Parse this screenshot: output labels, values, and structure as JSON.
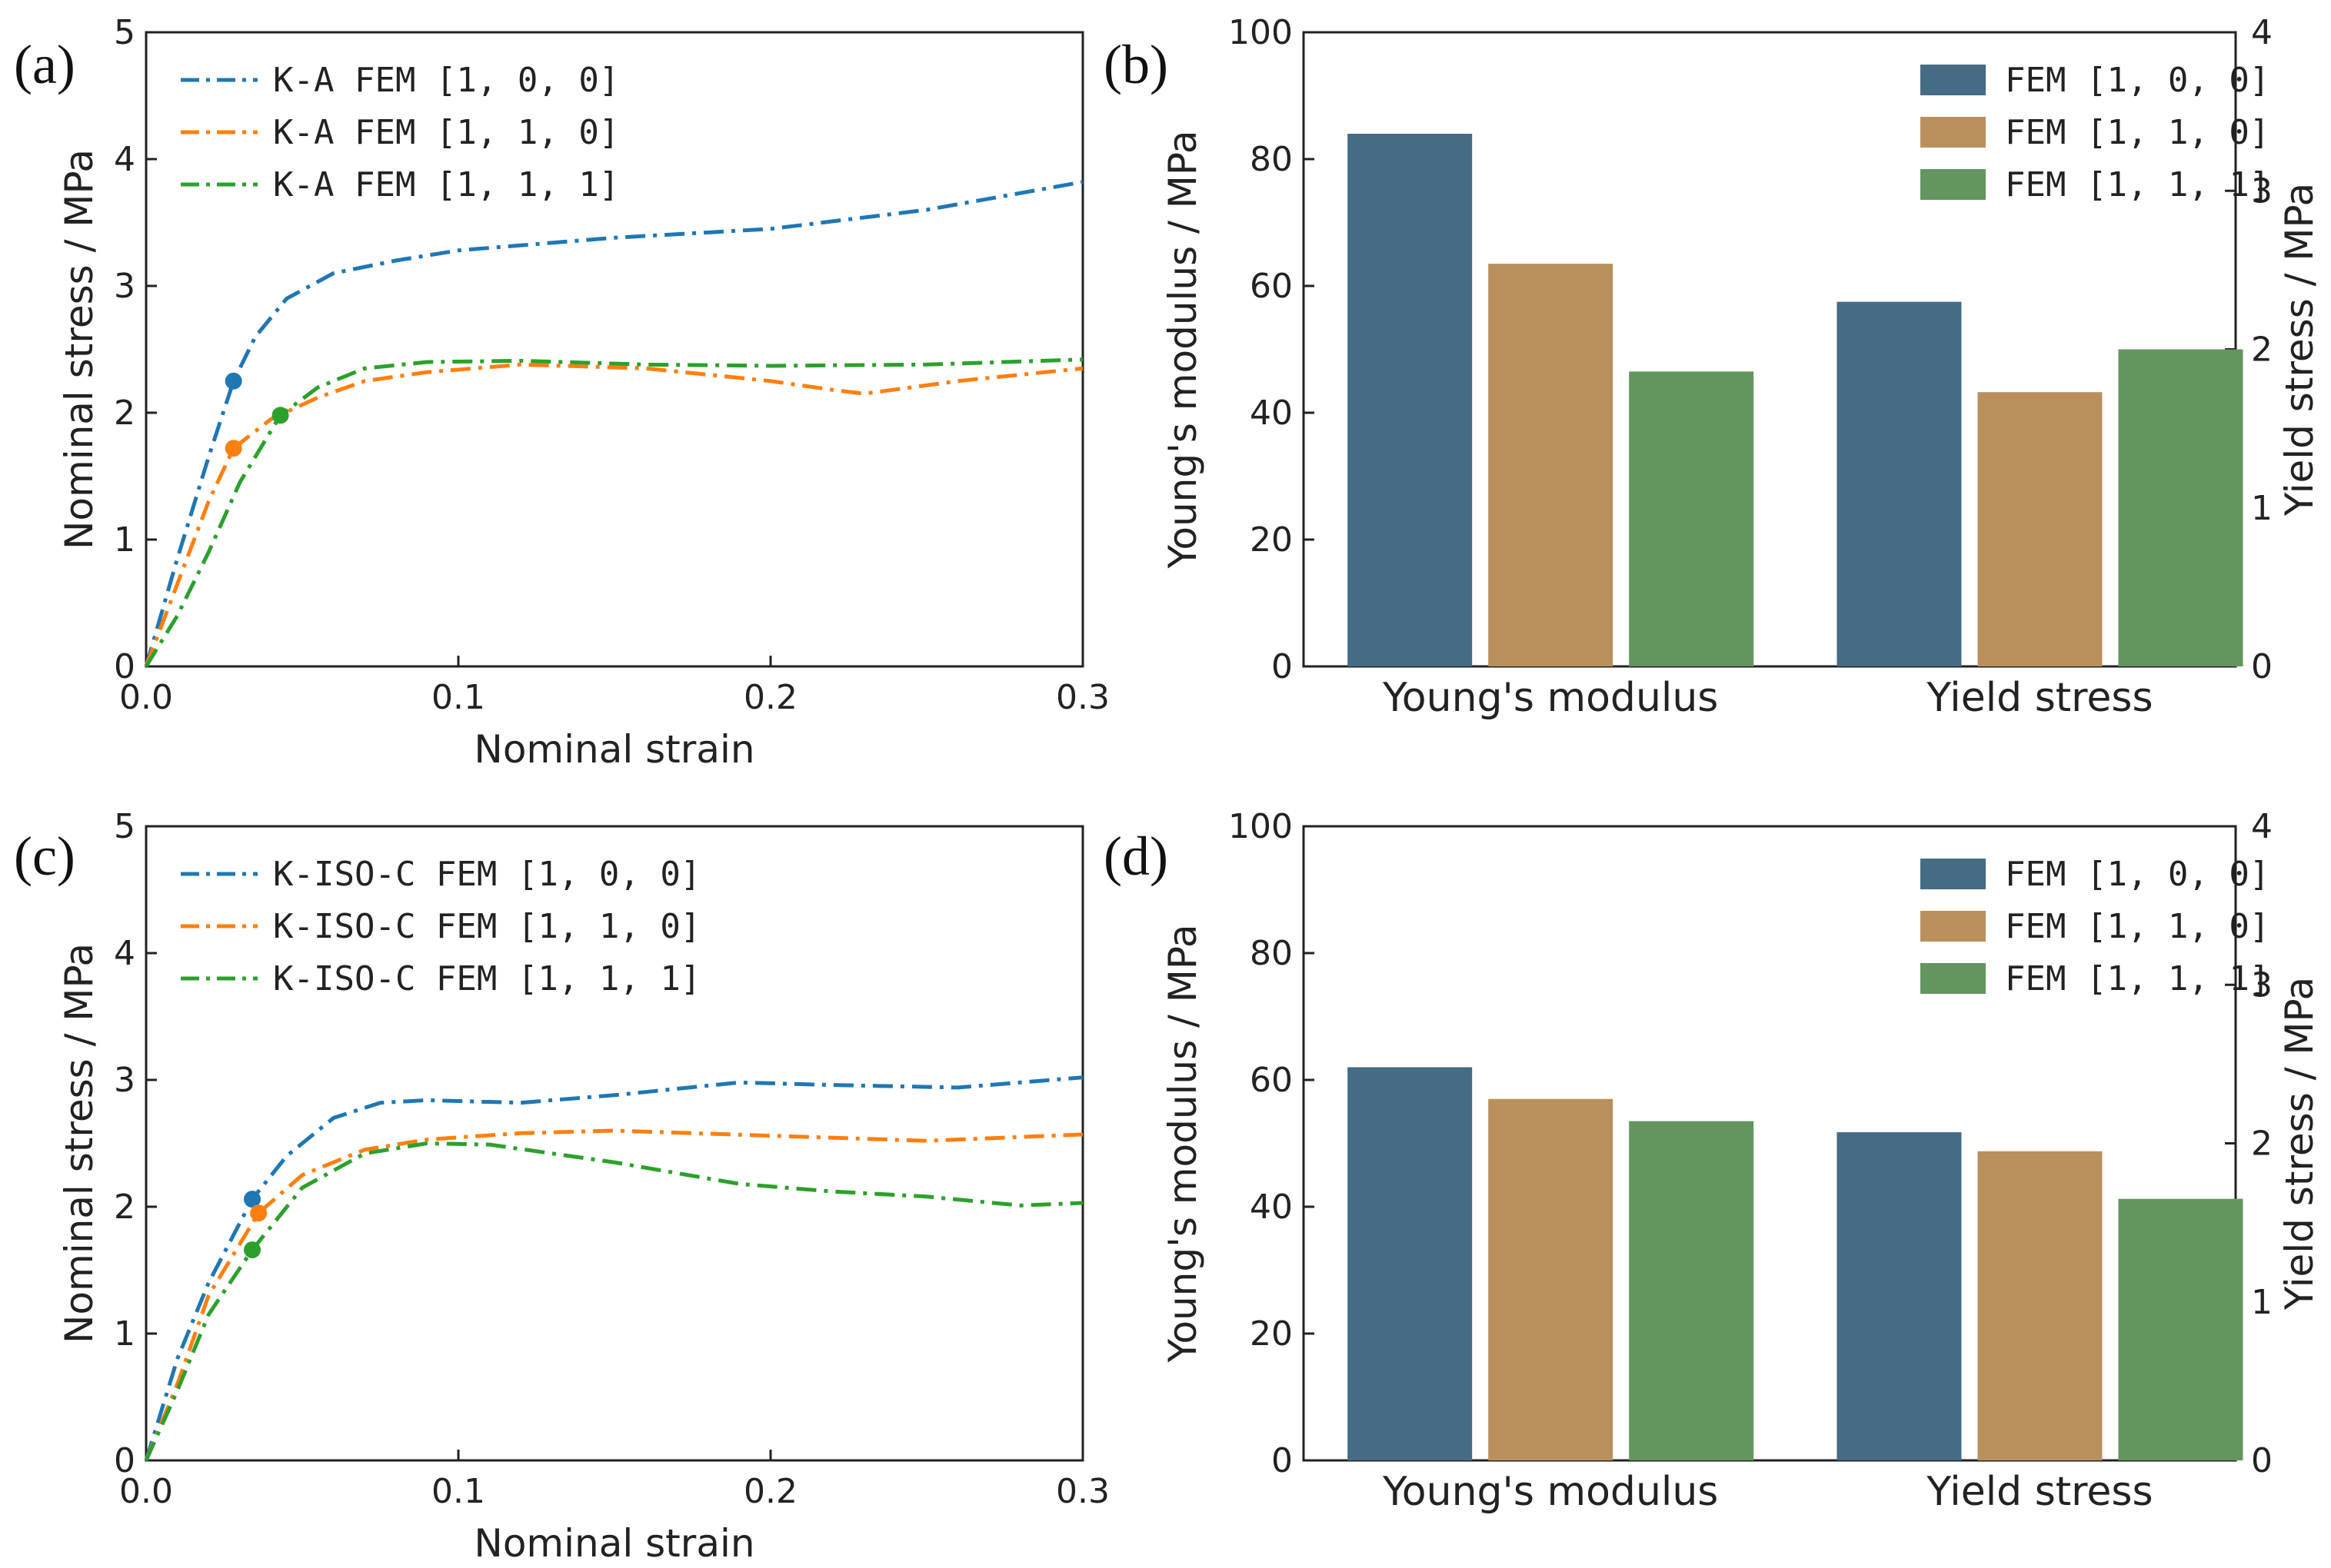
{
  "chart_data": [
    {
      "panel": "(a)",
      "type": "line",
      "xlabel": "Nominal strain",
      "ylabel": "Nominal stress / MPa",
      "xlim": [
        0,
        0.3
      ],
      "ylim": [
        0,
        5
      ],
      "xticks": [
        "0.0",
        "0.1",
        "0.2",
        "0.3"
      ],
      "yticks": [
        "0",
        "1",
        "2",
        "3",
        "4",
        "5"
      ],
      "legend_position": "top-left",
      "series": [
        {
          "name": "K-A FEM [1, 0, 0]",
          "color": "#1f77b4",
          "x": [
            0,
            0.01,
            0.02,
            0.028,
            0.035,
            0.045,
            0.06,
            0.08,
            0.1,
            0.15,
            0.2,
            0.25,
            0.3
          ],
          "y": [
            0,
            0.85,
            1.65,
            2.25,
            2.6,
            2.9,
            3.1,
            3.2,
            3.28,
            3.38,
            3.45,
            3.6,
            3.82
          ],
          "yield_point": [
            0.028,
            2.25
          ]
        },
        {
          "name": "K-A FEM [1, 1, 0]",
          "color": "#ff7f0e",
          "x": [
            0,
            0.01,
            0.02,
            0.028,
            0.04,
            0.055,
            0.07,
            0.09,
            0.12,
            0.16,
            0.2,
            0.22,
            0.23,
            0.26,
            0.3
          ],
          "y": [
            0,
            0.65,
            1.3,
            1.72,
            1.95,
            2.12,
            2.25,
            2.32,
            2.38,
            2.35,
            2.25,
            2.18,
            2.15,
            2.25,
            2.35
          ],
          "yield_point": [
            0.028,
            1.72
          ]
        },
        {
          "name": "K-A FEM [1, 1, 1]",
          "color": "#2ca02c",
          "x": [
            0,
            0.01,
            0.02,
            0.03,
            0.043,
            0.055,
            0.07,
            0.09,
            0.12,
            0.16,
            0.2,
            0.25,
            0.3
          ],
          "y": [
            0,
            0.4,
            0.9,
            1.45,
            1.98,
            2.2,
            2.35,
            2.4,
            2.41,
            2.38,
            2.37,
            2.38,
            2.42
          ],
          "yield_point": [
            0.043,
            1.98
          ]
        }
      ]
    },
    {
      "panel": "(b)",
      "type": "bar",
      "categories": [
        "Young's modulus",
        "Yield stress"
      ],
      "ylabel": "Young's modulus / MPa",
      "ylabel_right": "Yield stress / MPa",
      "ylim": [
        0,
        100
      ],
      "ylim_right": [
        0,
        4
      ],
      "yticks": [
        "0",
        "20",
        "40",
        "60",
        "80",
        "100"
      ],
      "yticks_right": [
        "0",
        "1",
        "2",
        "3",
        "4"
      ],
      "legend_position": "top-right",
      "series": [
        {
          "name": "FEM [1, 0, 0]",
          "color": "#456b85",
          "values": [
            84,
            2.3
          ]
        },
        {
          "name": "FEM [1, 1, 0]",
          "color": "#b9905c",
          "values": [
            63.5,
            1.73
          ]
        },
        {
          "name": "FEM [1, 1, 1]",
          "color": "#63955f",
          "values": [
            46.5,
            2.0
          ]
        }
      ]
    },
    {
      "panel": "(c)",
      "type": "line",
      "xlabel": "Nominal strain",
      "ylabel": "Nominal stress / MPa",
      "xlim": [
        0,
        0.3
      ],
      "ylim": [
        0,
        5
      ],
      "xticks": [
        "0.0",
        "0.1",
        "0.2",
        "0.3"
      ],
      "yticks": [
        "0",
        "1",
        "2",
        "3",
        "4",
        "5"
      ],
      "legend_position": "top-left",
      "series": [
        {
          "name": "K-ISO-C FEM [1, 0, 0]",
          "color": "#1f77b4",
          "x": [
            0,
            0.01,
            0.02,
            0.034,
            0.045,
            0.06,
            0.075,
            0.09,
            0.12,
            0.15,
            0.19,
            0.22,
            0.26,
            0.3
          ],
          "y": [
            0,
            0.8,
            1.4,
            2.06,
            2.4,
            2.7,
            2.82,
            2.84,
            2.82,
            2.88,
            2.98,
            2.96,
            2.94,
            3.02
          ],
          "yield_point": [
            0.034,
            2.06
          ]
        },
        {
          "name": "K-ISO-C FEM [1, 1, 0]",
          "color": "#ff7f0e",
          "x": [
            0,
            0.01,
            0.02,
            0.036,
            0.05,
            0.07,
            0.09,
            0.12,
            0.15,
            0.2,
            0.25,
            0.3
          ],
          "y": [
            0,
            0.6,
            1.3,
            1.95,
            2.25,
            2.45,
            2.53,
            2.58,
            2.6,
            2.56,
            2.52,
            2.57
          ],
          "yield_point": [
            0.036,
            1.95
          ]
        },
        {
          "name": "K-ISO-C FEM [1, 1, 1]",
          "color": "#2ca02c",
          "x": [
            0,
            0.01,
            0.02,
            0.034,
            0.05,
            0.07,
            0.09,
            0.11,
            0.15,
            0.19,
            0.22,
            0.25,
            0.28,
            0.3
          ],
          "y": [
            0,
            0.55,
            1.15,
            1.66,
            2.15,
            2.42,
            2.5,
            2.49,
            2.35,
            2.18,
            2.12,
            2.08,
            2.01,
            2.03
          ],
          "yield_point": [
            0.034,
            1.66
          ]
        }
      ]
    },
    {
      "panel": "(d)",
      "type": "bar",
      "categories": [
        "Young's modulus",
        "Yield stress"
      ],
      "ylabel": "Young's modulus / MPa",
      "ylabel_right": "Yield stress / MPa",
      "ylim": [
        0,
        100
      ],
      "ylim_right": [
        0,
        4
      ],
      "yticks": [
        "0",
        "20",
        "40",
        "60",
        "80",
        "100"
      ],
      "yticks_right": [
        "0",
        "1",
        "2",
        "3",
        "4"
      ],
      "legend_position": "top-right",
      "series": [
        {
          "name": "FEM [1, 0, 0]",
          "color": "#456b85",
          "values": [
            62,
            2.07
          ]
        },
        {
          "name": "FEM [1, 1, 0]",
          "color": "#b9905c",
          "values": [
            57,
            1.95
          ]
        },
        {
          "name": "FEM [1, 1, 1]",
          "color": "#63955f",
          "values": [
            53.5,
            1.65
          ]
        }
      ]
    }
  ]
}
